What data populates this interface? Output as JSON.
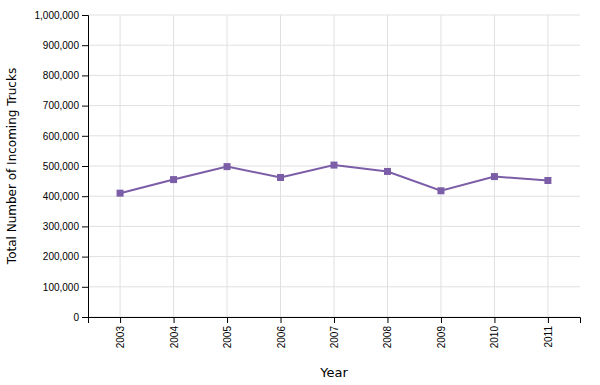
{
  "chart_data": {
    "type": "line",
    "xlabel": "Year",
    "ylabel": "Total Number of Incoming Trucks",
    "x": [
      2003,
      2004,
      2005,
      2006,
      2007,
      2008,
      2009,
      2010,
      2011
    ],
    "values": [
      410000,
      455000,
      498000,
      462000,
      503000,
      482000,
      418000,
      465000,
      452000
    ],
    "color": "#7b5ea7",
    "marker": "square",
    "xlim": [
      2002.4,
      2011.6
    ],
    "xticks": [
      2003,
      2004,
      2005,
      2006,
      2007,
      2008,
      2009,
      2010,
      2011
    ],
    "ylim": [
      0,
      1000000
    ],
    "yticks": [
      0,
      {
        "value": 100000,
        "label": "100,000"
      },
      {
        "value": 200000,
        "label": "200,000"
      },
      {
        "value": 300000,
        "label": "300,000"
      },
      {
        "value": 400000,
        "label": "400,000"
      },
      {
        "value": 500000,
        "label": "500,000"
      },
      {
        "value": 600000,
        "label": "600,000"
      },
      {
        "value": 700000,
        "label": "700,000"
      },
      {
        "value": 800000,
        "label": "800,000"
      },
      {
        "value": 900000,
        "label": "900,000"
      },
      {
        "value": 1000000,
        "label": "1,000,000"
      }
    ],
    "grid": true
  }
}
